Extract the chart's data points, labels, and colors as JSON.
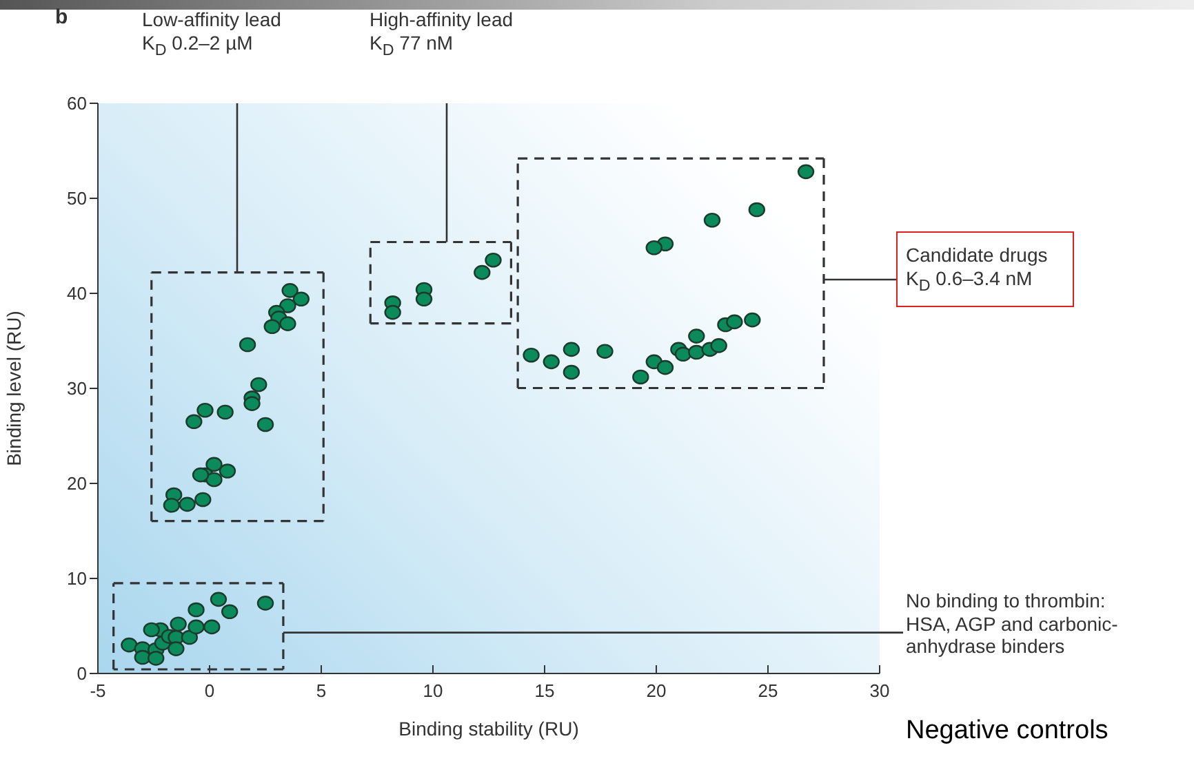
{
  "chart_data": {
    "type": "scatter",
    "xlabel": "Binding stability (RU)",
    "ylabel": "Binding level (RU)",
    "xlim": [
      -5,
      30
    ],
    "xticks": [
      -5,
      0,
      5,
      10,
      15,
      20,
      25,
      30
    ],
    "ylim": [
      0,
      60
    ],
    "yticks": [
      0,
      10,
      20,
      30,
      40,
      50,
      60
    ],
    "grid": false,
    "legend": false,
    "marker": "circle",
    "annotations": [
      "b",
      "Low-affinity lead\nK$_{D}$ 0.2–2 µM",
      "High-affinity lead\nK$_{D}$ 77 nM",
      "Candidate drugs\nK$_{D}$ 0.6–3.4 nM",
      "No binding to thrombin:\nHSA, AGP and carbonic-\nanhydrase binders",
      "Negative controls"
    ],
    "series": [
      {
        "color": "#0b8a5c",
        "x": [
          -3.6,
          -3.0,
          -3.0,
          -2.4,
          -2.2,
          -2.1,
          -1.8,
          -1.5,
          -1.4,
          -1.5,
          -0.9,
          -0.6,
          -0.6,
          0.1,
          0.4,
          0.9,
          2.5,
          -2.4,
          -2.6,
          3.6,
          4.1,
          3.5,
          3.0,
          3.1,
          2.8,
          3.5,
          1.7,
          2.2,
          1.9,
          1.9,
          2.5,
          -0.2,
          0.7,
          -0.7,
          0.2,
          0.8,
          -0.2,
          0.2,
          -0.4,
          -1.6,
          -1.7,
          -1.0,
          -0.3,
          8.2,
          8.2,
          9.6,
          9.6,
          12.2,
          12.7,
          26.7,
          24.5,
          22.5,
          20.4,
          19.9,
          14.4,
          15.3,
          16.2,
          16.2,
          17.7,
          19.3,
          19.9,
          20.4,
          21.0,
          21.2,
          21.8,
          21.8,
          22.4,
          22.8,
          23.1,
          23.5,
          24.3
        ],
        "values": [
          3.0,
          2.6,
          1.7,
          2.5,
          4.6,
          3.2,
          3.9,
          3.8,
          5.2,
          2.6,
          3.8,
          6.7,
          4.9,
          4.9,
          7.8,
          6.5,
          7.4,
          1.6,
          4.6,
          40.3,
          39.4,
          38.7,
          38.0,
          37.4,
          36.5,
          36.8,
          34.6,
          30.4,
          29.0,
          28.4,
          26.2,
          27.7,
          27.5,
          26.5,
          22.0,
          21.3,
          20.9,
          20.4,
          20.9,
          18.8,
          17.7,
          17.8,
          18.3,
          39.0,
          38.0,
          40.4,
          39.4,
          42.2,
          43.5,
          52.8,
          48.8,
          47.7,
          45.2,
          44.8,
          33.5,
          32.8,
          34.1,
          31.7,
          33.9,
          31.2,
          32.8,
          32.2,
          34.1,
          33.6,
          35.5,
          33.8,
          34.1,
          34.5,
          36.7,
          37.0,
          37.2
        ]
      }
    ]
  }
}
